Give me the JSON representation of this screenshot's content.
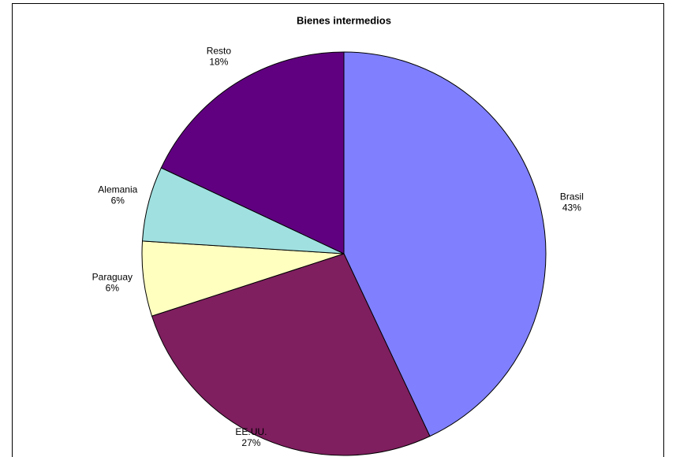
{
  "chart_data": {
    "type": "pie",
    "title": "Bienes intermedios",
    "categories": [
      "Brasil",
      "EE.UU.",
      "Paraguay",
      "Alemania",
      "Resto"
    ],
    "values": [
      43,
      27,
      6,
      6,
      18
    ],
    "value_labels": [
      "43%",
      "27%",
      "6%",
      "6%",
      "18%"
    ],
    "colors": [
      "#8080ff",
      "#7f1f5f",
      "#ffffc0",
      "#a0e0e0",
      "#600080"
    ]
  }
}
